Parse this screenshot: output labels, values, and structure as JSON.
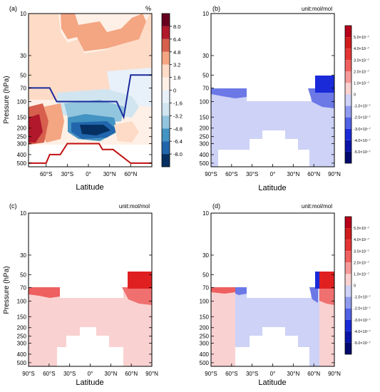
{
  "chart_data": [
    {
      "panel": "(a)",
      "type": "heatmap",
      "unit_label": "%",
      "ylabel": "Pressure (hPa)",
      "xlabel": "Latitude",
      "x_ticks": [
        "60°S",
        "30°S",
        "0°",
        "30°N",
        "60°N"
      ],
      "x_tick_values": [
        -60,
        -30,
        0,
        30,
        60
      ],
      "xlim": [
        -85,
        90
      ],
      "y_ticks": [
        "10",
        "30",
        "50",
        "70",
        "100",
        "150",
        "200",
        "250",
        "300",
        "400",
        "500"
      ],
      "y_tick_values": [
        10,
        30,
        50,
        70,
        100,
        150,
        200,
        250,
        300,
        400,
        500
      ],
      "ylim": [
        10,
        550
      ],
      "y_scale": "log",
      "colorbar_labels": [
        "8.0",
        "6.4",
        "4.8",
        "3.2",
        "1.6",
        "0",
        "-1.6",
        "-3.2",
        "-4.8",
        "-6.4",
        "-8.0"
      ],
      "colorbar_colors": [
        "#67001f",
        "#b2182b",
        "#d6604d",
        "#f4a582",
        "#fddbc7",
        "#fef0e6",
        "#e8f1fa",
        "#d1e5f0",
        "#92c5de",
        "#4393c3",
        "#2166ac",
        "#053061"
      ],
      "tropopause_line": {
        "x": [
          -85,
          -55,
          -45,
          40,
          50,
          60,
          90
        ],
        "p": [
          70,
          70,
          100,
          100,
          150,
          50,
          50
        ]
      },
      "surface_line": {
        "x": [
          -85,
          -60,
          -55,
          -40,
          -30,
          15,
          20,
          35,
          60,
          90
        ],
        "p": [
          500,
          500,
          400,
          400,
          300,
          300,
          350,
          350,
          500,
          500
        ]
      }
    },
    {
      "panel": "(b)",
      "type": "heatmap",
      "unit_label": "unit:mol/mol",
      "xlabel": "Latitude",
      "x_ticks": [
        "90°S",
        "60°S",
        "30°S",
        "0°",
        "30°N",
        "60°N",
        "90°N"
      ],
      "x_tick_values": [
        -90,
        -60,
        -30,
        0,
        30,
        60,
        90
      ],
      "y_ticks": [
        "10",
        "30",
        "50",
        "70",
        "100",
        "150",
        "200",
        "250",
        "300",
        "400",
        "500"
      ],
      "colorbar_labels": [
        "5.0×10⁻⁷",
        "4.0×10⁻⁷",
        "3.0×10⁻⁷",
        "2.0×10⁻⁷",
        "1.0×10⁻⁷",
        "0",
        "-1.0×10⁻⁷",
        "-2.0×10⁻⁷",
        "-3.0×10⁻⁷",
        "-4.0×10⁻⁷",
        "-5.0×10⁻⁷"
      ]
    },
    {
      "panel": "(c)",
      "type": "heatmap",
      "unit_label": "unit:mol/mol",
      "ylabel": "Pressure (hPa)",
      "xlabel": "Latitude",
      "x_ticks": [
        "90°S",
        "60°S",
        "30°S",
        "0°",
        "30°N",
        "60°N",
        "90°N"
      ],
      "y_ticks": [
        "10",
        "30",
        "50",
        "70",
        "100",
        "150",
        "200",
        "250",
        "300",
        "400",
        "500"
      ]
    },
    {
      "panel": "(d)",
      "type": "heatmap",
      "unit_label": "unit:mol/mol",
      "xlabel": "Latitude",
      "x_ticks": [
        "90°S",
        "60°S",
        "30°S",
        "0°",
        "30°N",
        "60°N",
        "90°N"
      ],
      "y_ticks": [
        "10",
        "30",
        "50",
        "70",
        "100",
        "150",
        "200",
        "250",
        "300",
        "400",
        "500"
      ],
      "colorbar_labels": [
        "5.0×10⁻⁷",
        "4.0×10⁻⁷",
        "3.0×10⁻⁷",
        "2.0×10⁻⁷",
        "1.0×10⁻⁷",
        "0",
        "-1.0×10⁻⁷",
        "-2.0×10⁻⁷",
        "-3.0×10⁻⁷",
        "-4.0×10⁻⁷",
        "-5.0×10⁻⁷"
      ]
    }
  ]
}
